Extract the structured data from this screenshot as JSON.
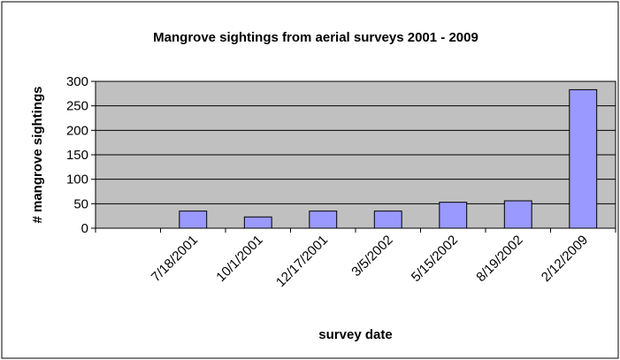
{
  "chart_data": {
    "type": "bar",
    "title": "Mangrove sightings from aerial surveys 2001 - 2009",
    "xlabel": "survey date",
    "ylabel": "# mangrove sightings",
    "categories": [
      "",
      "7/18/2001",
      "10/1/2001",
      "12/17/2001",
      "3/5/2002",
      "5/15/2002",
      "8/19/2002",
      "2/12/2009"
    ],
    "values": [
      null,
      35,
      23,
      35,
      35,
      53,
      56,
      283
    ],
    "ylim": [
      0,
      300
    ],
    "yticks": [
      0,
      50,
      100,
      150,
      200,
      250,
      300
    ],
    "grid": true,
    "legend": "none",
    "colors": {
      "bar_fill": "#9999ff",
      "bar_stroke": "#000000",
      "plot_bg": "#c0c0c0",
      "gridline": "#000000"
    }
  }
}
